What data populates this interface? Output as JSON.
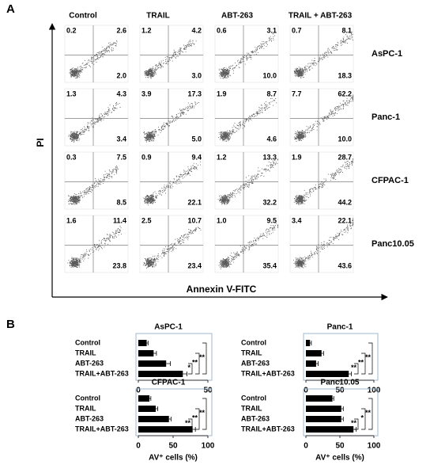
{
  "panel_labels": [
    "A",
    "B"
  ],
  "panel_a": {
    "columns": [
      "Control",
      "TRAIL",
      "ABT-263",
      "TRAIL + ABT-263"
    ],
    "y_axis": "PI",
    "x_axis": "Annexin V-FITC",
    "rows": [
      {
        "name": "AsPC-1",
        "cells": [
          [
            "0.2",
            "2.6",
            "2.0"
          ],
          [
            "1.2",
            "4.2",
            "3.0"
          ],
          [
            "0.6",
            "3.1",
            "10.0"
          ],
          [
            "0.7",
            "8.1",
            "18.3"
          ]
        ]
      },
      {
        "name": "Panc-1",
        "cells": [
          [
            "1.3",
            "4.3",
            "3.4"
          ],
          [
            "3.9",
            "17.3",
            "5.0"
          ],
          [
            "1.9",
            "8.7",
            "4.6"
          ],
          [
            "7.7",
            "62.2",
            "10.0"
          ]
        ]
      },
      {
        "name": "CFPAC-1",
        "cells": [
          [
            "0.3",
            "7.5",
            "8.5"
          ],
          [
            "0.9",
            "9.4",
            "22.1"
          ],
          [
            "1.2",
            "13.3",
            "32.2"
          ],
          [
            "1.9",
            "28.7",
            "44.2"
          ]
        ]
      },
      {
        "name": "Panc10.05",
        "cells": [
          [
            "1.6",
            "11.4",
            "23.8"
          ],
          [
            "2.5",
            "10.7",
            "23.4"
          ],
          [
            "1.0",
            "9.5",
            "35.4"
          ],
          [
            "3.4",
            "22.1",
            "43.6"
          ]
        ]
      }
    ]
  },
  "chart_data": [
    {
      "type": "bar",
      "title": "AsPC-1",
      "categories": [
        "Control",
        "TRAIL",
        "ABT-263",
        "TRAIL+ABT-263"
      ],
      "values": [
        6,
        11,
        20,
        32
      ],
      "errors": [
        1,
        2,
        3,
        3
      ],
      "color": "#000000",
      "xlim": [
        0,
        50
      ],
      "xticks": [
        0,
        50
      ],
      "significance": [
        "**",
        "**",
        "*"
      ]
    },
    {
      "type": "bar",
      "title": "Panc-1",
      "categories": [
        "Control",
        "TRAIL",
        "ABT-263",
        "TRAIL+ABT-263"
      ],
      "values": [
        6,
        23,
        15,
        63
      ],
      "errors": [
        2,
        3,
        3,
        4
      ],
      "color": "#000000",
      "xlim": [
        0,
        100
      ],
      "xticks": [
        0,
        50,
        100
      ],
      "significance": [
        "**",
        "**",
        "**"
      ]
    },
    {
      "type": "bar",
      "title": "CFPAC-1",
      "categories": [
        "Control",
        "TRAIL",
        "ABT-263",
        "TRAIL+ABT-263"
      ],
      "values": [
        16,
        25,
        44,
        78
      ],
      "errors": [
        2,
        3,
        3,
        4
      ],
      "color": "#000000",
      "xlim": [
        0,
        100
      ],
      "xticks": [
        0,
        50,
        100
      ],
      "xlabel": "AV⁺ cells (%)",
      "significance": [
        "**",
        "**",
        "**"
      ]
    },
    {
      "type": "bar",
      "title": "Panc10.05",
      "categories": [
        "Control",
        "TRAIL",
        "ABT-263",
        "TRAIL+ABT-263"
      ],
      "values": [
        39,
        52,
        52,
        70
      ],
      "errors": [
        2,
        3,
        3,
        4
      ],
      "color": "#000000",
      "xlim": [
        0,
        100
      ],
      "xticks": [
        0,
        50,
        100
      ],
      "xlabel": "AV⁺ cells (%)",
      "significance": [
        "**",
        "*",
        "**"
      ]
    }
  ]
}
